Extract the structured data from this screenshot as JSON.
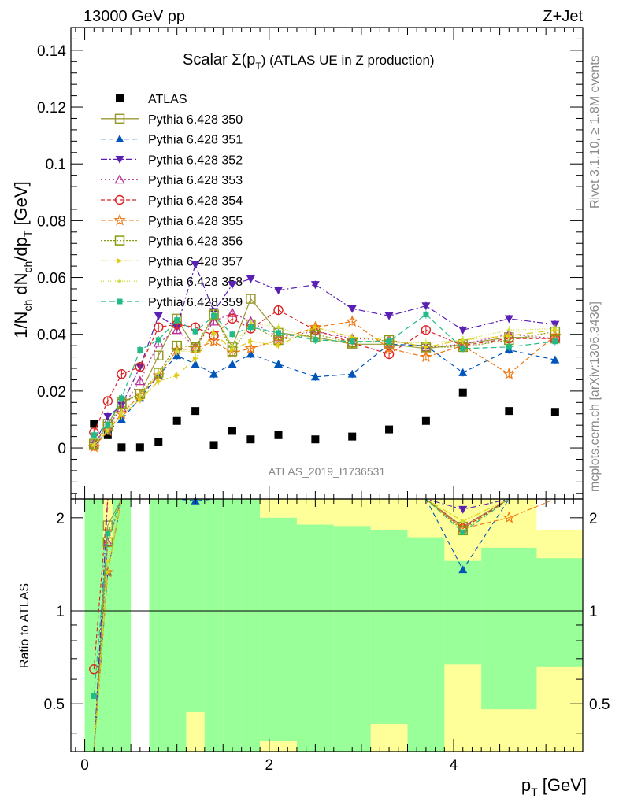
{
  "header": {
    "left": "13000 GeV pp",
    "right": "Z+Jet"
  },
  "side_labels": {
    "rivet": "Rivet 3.1.10, ≥ 1.8M events",
    "mcplots": "mcplots.cern.ch [arXiv:1306.3436]"
  },
  "chart_data": {
    "type": "scatter",
    "title": "Scalar Σ(pT) (ATLAS UE in Z production)",
    "title_parts": {
      "prefix": "Scalar ",
      "sigma": "Σ(p",
      "sub": "T",
      "suffix": ") (ATLAS UE in Z production)"
    },
    "ylabel": "1/Nch dNch/dpT [GeV]",
    "xlabel": "pT [GeV]",
    "ratio_ylabel": "Ratio to ATLAS",
    "watermark": "ATLAS_2019_I1736531",
    "xlim": [
      -0.15,
      5.4
    ],
    "ylim": [
      -0.018,
      0.148
    ],
    "ratio_ylim": [
      0.35,
      2.3
    ],
    "x_ticks": [
      0,
      2,
      4
    ],
    "y_ticks": [
      0,
      0.02,
      0.04,
      0.06,
      0.08,
      0.1,
      0.12,
      0.14
    ],
    "y_tick_labels": [
      "0",
      "0.02",
      "0.04",
      "0.06",
      "0.08",
      "0.1",
      "0.12",
      "0.14"
    ],
    "ratio_y_ticks": [
      0.5,
      1,
      2
    ],
    "ratio_y_tick_labels": [
      "0.5",
      "1",
      "2"
    ],
    "legend_position": "top-left",
    "x": [
      0.1,
      0.25,
      0.4,
      0.6,
      0.8,
      1.0,
      1.2,
      1.4,
      1.6,
      1.8,
      2.1,
      2.5,
      2.9,
      3.3,
      3.7,
      4.1,
      4.6,
      5.1
    ],
    "bin_edges": [
      0.0,
      0.2,
      0.3,
      0.5,
      0.7,
      0.9,
      1.1,
      1.3,
      1.5,
      1.7,
      1.9,
      2.3,
      2.7,
      3.1,
      3.5,
      3.9,
      4.3,
      4.9,
      5.4
    ],
    "ratio_band_inner": [
      [
        0.35,
        2.3
      ],
      [
        0.35,
        1.65
      ],
      [
        0.35,
        2.3
      ],
      null,
      [
        0.35,
        2.3
      ],
      [
        0.35,
        2.3
      ],
      [
        0.47,
        2.3
      ],
      [
        0.35,
        2.3
      ],
      [
        0.35,
        2.3
      ],
      [
        0.35,
        2.3
      ],
      [
        0.38,
        2.0
      ],
      [
        0.35,
        1.9
      ],
      [
        0.35,
        1.88
      ],
      [
        0.43,
        1.83
      ],
      [
        0.35,
        1.73
      ],
      [
        0.67,
        1.45
      ],
      [
        0.48,
        1.6
      ],
      [
        0.66,
        1.48
      ]
    ],
    "ratio_band_outer": [
      [
        0.35,
        2.3
      ],
      [
        0.35,
        2.3
      ],
      [
        0.35,
        2.3
      ],
      null,
      [
        0.35,
        2.3
      ],
      [
        0.35,
        2.3
      ],
      [
        0.35,
        2.3
      ],
      [
        0.35,
        2.3
      ],
      [
        0.35,
        2.3
      ],
      [
        0.35,
        2.3
      ],
      [
        0.35,
        2.3
      ],
      [
        0.35,
        2.3
      ],
      [
        0.35,
        2.3
      ],
      [
        0.35,
        2.3
      ],
      [
        0.35,
        2.3
      ],
      [
        0.35,
        2.3
      ],
      [
        0.35,
        2.3
      ],
      [
        0.35,
        1.83
      ]
    ],
    "series": [
      {
        "name": "ATLAS",
        "color": "#000000",
        "marker": "square-filled",
        "dash": "none",
        "data_points": true,
        "values": [
          0.0085,
          0.0045,
          0.0002,
          0.0002,
          0.002,
          0.0095,
          0.013,
          0.001,
          0.006,
          0.003,
          0.0045,
          0.003,
          0.004,
          0.0065,
          0.0095,
          0.0195,
          0.013,
          0.0127
        ]
      },
      {
        "name": "Pythia 6.428 350",
        "color": "#999933",
        "marker": "square-open",
        "dash": "solid",
        "values": [
          0.001,
          0.0085,
          0.016,
          0.019,
          0.0325,
          0.0455,
          0.035,
          0.0465,
          0.0355,
          0.0525,
          0.0405,
          0.039,
          0.0365,
          0.0365,
          0.035,
          0.0365,
          0.039,
          0.0385
        ]
      },
      {
        "name": "Pythia 6.428 351",
        "color": "#0055bb",
        "marker": "triangle-up-filled",
        "dash": "6,4",
        "values": [
          0.0008,
          0.006,
          0.01,
          0.0175,
          0.0255,
          0.0325,
          0.0295,
          0.026,
          0.0295,
          0.033,
          0.0295,
          0.025,
          0.026,
          0.0365,
          0.036,
          0.0265,
          0.0345,
          0.031
        ]
      },
      {
        "name": "Pythia 6.428 352",
        "color": "#5a1fb3",
        "marker": "triangle-down-filled",
        "dash": "8,3,2,3",
        "values": [
          0.001,
          0.011,
          0.015,
          0.0285,
          0.0465,
          0.0425,
          0.0645,
          0.048,
          0.0575,
          0.0595,
          0.0555,
          0.0575,
          0.049,
          0.0465,
          0.05,
          0.0415,
          0.0455,
          0.0435
        ]
      },
      {
        "name": "Pythia 6.428 353",
        "color": "#bb3399",
        "marker": "triangle-up-open",
        "dash": "2,3",
        "values": [
          0.0015,
          0.0075,
          0.014,
          0.0235,
          0.037,
          0.0415,
          0.0355,
          0.0445,
          0.0475,
          0.0445,
          0.039,
          0.041,
          0.0385,
          0.038,
          0.0355,
          0.0365,
          0.04,
          0.0385
        ]
      },
      {
        "name": "Pythia 6.428 354",
        "color": "#dd2222",
        "marker": "circle-open",
        "dash": "5,3",
        "values": [
          0.0055,
          0.0165,
          0.026,
          0.0285,
          0.0425,
          0.0435,
          0.0425,
          0.0395,
          0.0455,
          0.042,
          0.0485,
          0.0415,
          0.037,
          0.033,
          0.0415,
          0.036,
          0.0385,
          0.0385
        ]
      },
      {
        "name": "Pythia 6.428 355",
        "color": "#ee7711",
        "marker": "star-open",
        "dash": "6,3",
        "values": [
          0.0003,
          0.006,
          0.012,
          0.0185,
          0.0255,
          0.0345,
          0.035,
          0.0375,
          0.0335,
          0.035,
          0.038,
          0.0425,
          0.0445,
          0.035,
          0.032,
          0.036,
          0.026,
          0.0395
        ]
      },
      {
        "name": "Pythia 6.428 356",
        "color": "#889911",
        "marker": "square-open",
        "dash": "2,2",
        "values": [
          0.0015,
          0.0075,
          0.0155,
          0.019,
          0.0265,
          0.036,
          0.0355,
          0.047,
          0.034,
          0.0435,
          0.038,
          0.04,
          0.037,
          0.038,
          0.0355,
          0.0355,
          0.038,
          0.041
        ]
      },
      {
        "name": "Pythia 6.428 357",
        "color": "#ddcc11",
        "marker": "triangle-right-filled",
        "dash": "8,3,1,3",
        "values": [
          0.001,
          0.006,
          0.0115,
          0.017,
          0.0235,
          0.0255,
          0.0315,
          0.0405,
          0.0345,
          0.0375,
          0.036,
          0.0425,
          0.039,
          0.038,
          0.0355,
          0.038,
          0.0395,
          0.0415
        ]
      },
      {
        "name": "Pythia 6.428 358",
        "color": "#ccdd33",
        "marker": "dot",
        "dash": "1,2",
        "values": [
          0.001,
          0.0065,
          0.0125,
          0.0185,
          0.0265,
          0.034,
          0.034,
          0.0475,
          0.036,
          0.044,
          0.0425,
          0.038,
          0.0375,
          0.037,
          0.037,
          0.038,
          0.0415,
          0.042
        ]
      },
      {
        "name": "Pythia 6.428 359",
        "color": "#22bb88",
        "marker": "square-filled-small",
        "dash": "7,4",
        "values": [
          0.0045,
          0.008,
          0.0175,
          0.0345,
          0.038,
          0.045,
          0.041,
          0.0465,
          0.04,
          0.0425,
          0.0405,
          0.038,
          0.0375,
          0.0375,
          0.047,
          0.035,
          0.0355,
          0.0375
        ]
      }
    ]
  }
}
